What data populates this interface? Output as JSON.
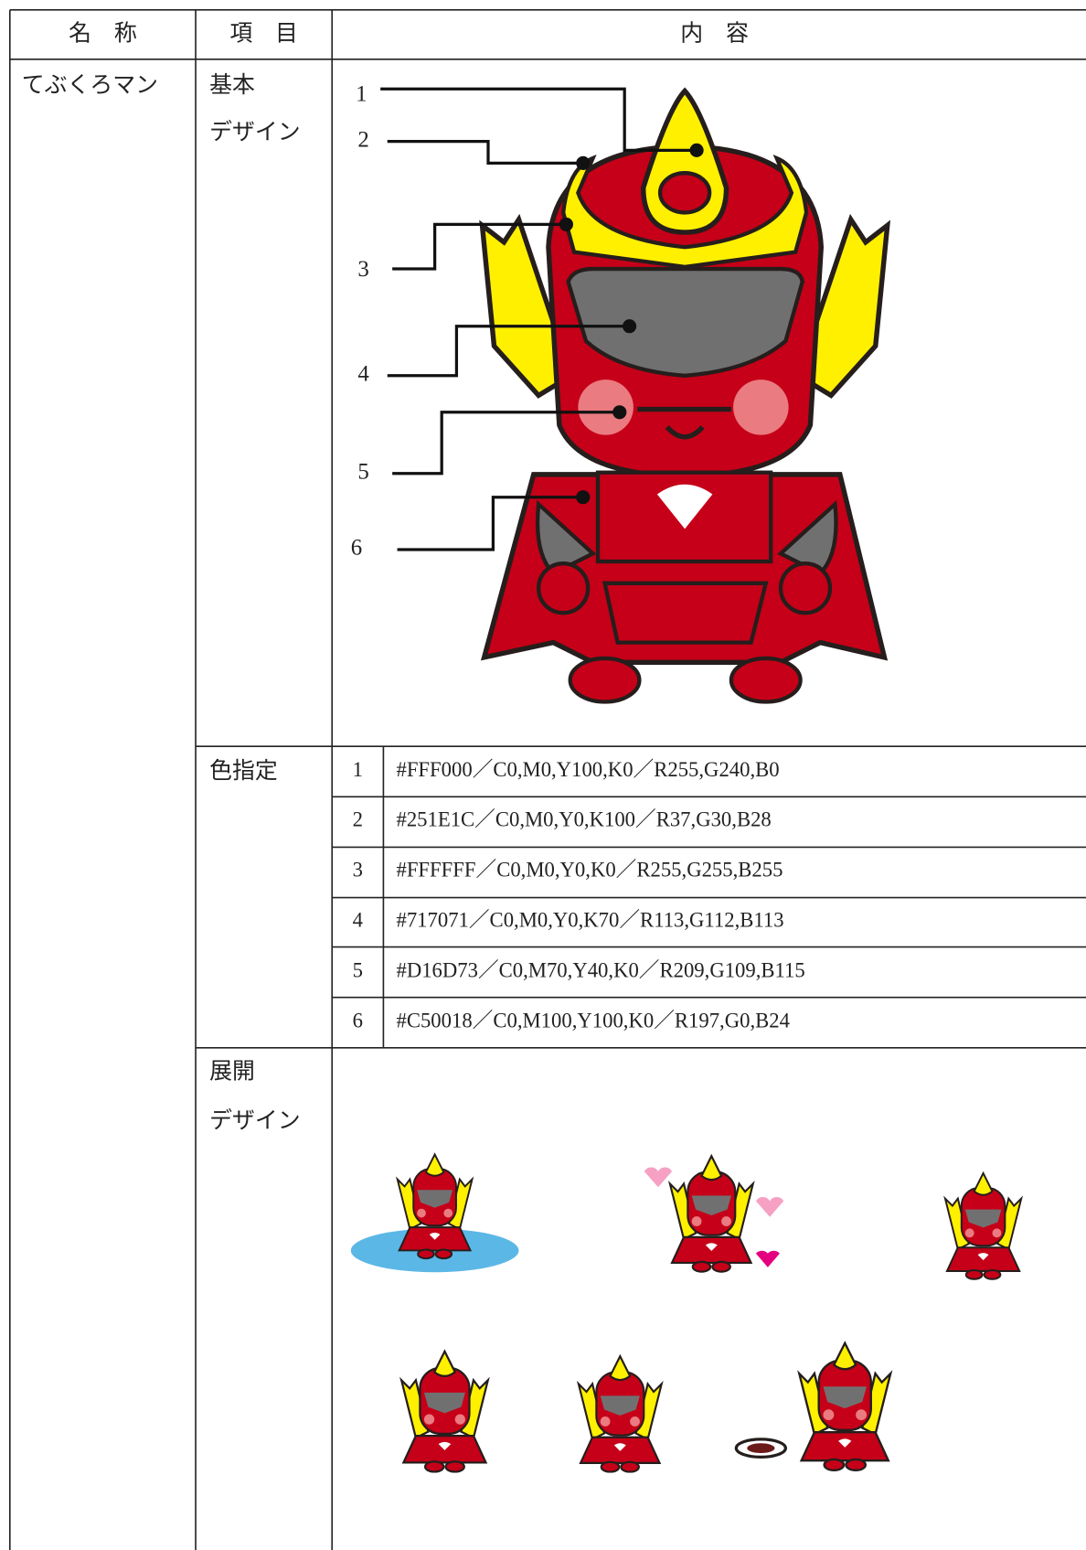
{
  "header": {
    "name": "名　称",
    "item": "項　目",
    "content": "内　容"
  },
  "row": {
    "name": "てぶくろマン",
    "basic_design": {
      "label": [
        "基本",
        "デザイン"
      ],
      "callouts": [
        "1",
        "2",
        "3",
        "4",
        "5",
        "6"
      ]
    },
    "color_spec": {
      "label": "色指定",
      "rows": [
        [
          "1",
          "#FFF000／C0,M0,Y100,K0／R255,G240,B0"
        ],
        [
          "2",
          "#251E1C／C0,M0,Y0,K100／R37,G30,B28"
        ],
        [
          "3",
          "#FFFFFF／C0,M0,Y0,K0／R255,G255,B255"
        ],
        [
          "4",
          "#717071／C0,M0,Y0,K70／R113,G112,B113"
        ],
        [
          "5",
          "#D16D73／C0,M70,Y40,K0／R209,G109,B115"
        ],
        [
          "6",
          "#C50018／C0,M100,Y100,K0／R197,G0,B24"
        ]
      ]
    },
    "expanded_design": {
      "label": [
        "展開",
        "デザイン"
      ]
    }
  }
}
